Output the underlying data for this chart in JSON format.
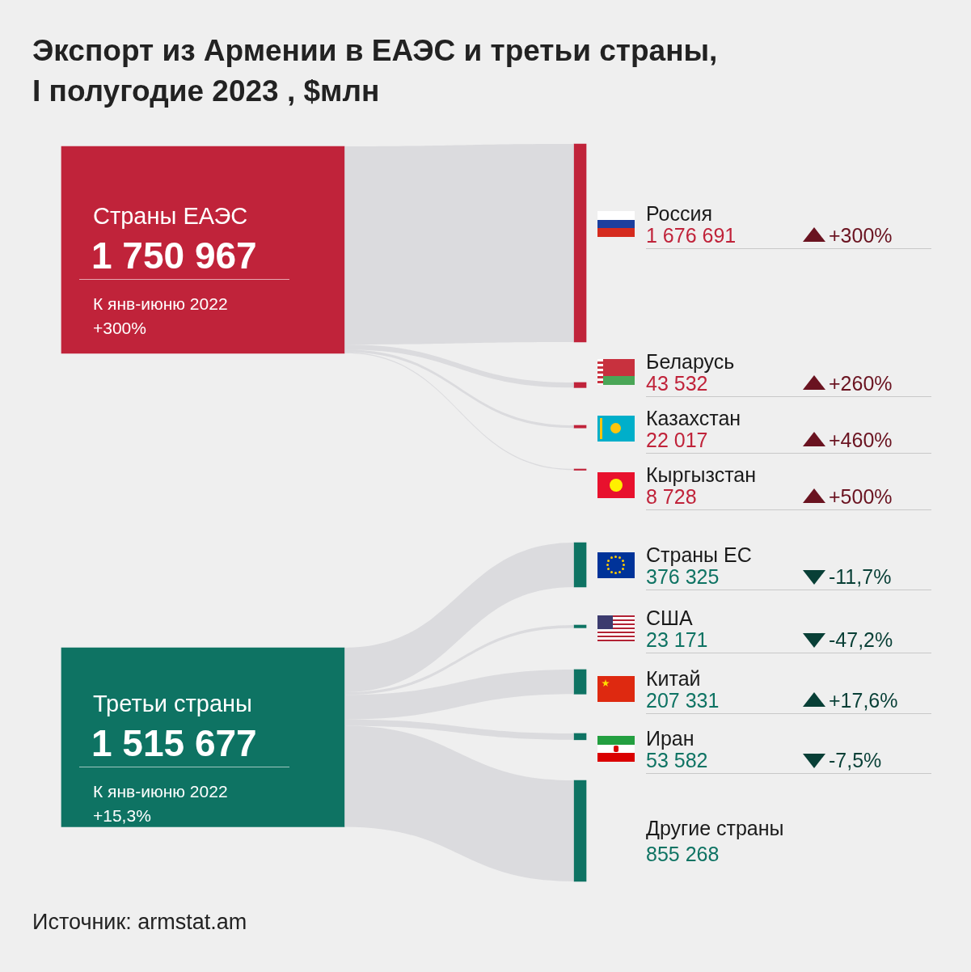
{
  "chart_data": {
    "type": "other",
    "title": "Экспорт из Армении в ЕАЭС и третьи страны, I полугодие 2023 , $млн",
    "categories": [
      "Россия",
      "Беларусь",
      "Казахстан",
      "Кыргызстан",
      "Страны ЕС",
      "США",
      "Китай",
      "Иран",
      "Другие страны"
    ],
    "series": [
      {
        "name": "Страны ЕАЭС",
        "values": [
          1676691,
          43532,
          22017,
          8728,
          null,
          null,
          null,
          null,
          null
        ],
        "value_labels": [
          "1 676 691",
          "43 532",
          "22 017",
          "8 728",
          null,
          null,
          null,
          null,
          null
        ]
      },
      {
        "name": "Третьи страны",
        "values": [
          null,
          null,
          null,
          null,
          376325,
          23171,
          207331,
          53582,
          855268
        ],
        "value_labels": [
          null,
          null,
          null,
          null,
          "376 325",
          "23 171",
          "207 331",
          "53 582",
          "855 268"
        ]
      }
    ],
    "totals": [
      "1 750 967",
      "1 515 677"
    ],
    "annotations": [
      "К янв-июню 2022\n+300%",
      "К янв-июню 2022\n+15,3%",
      {
        "text": "+300%",
        "x": "Россия"
      },
      {
        "text": "+260%",
        "x": "Беларусь"
      },
      {
        "text": "+460%",
        "x": "Казахстан"
      },
      {
        "text": "+500%",
        "x": "Кыргызстан"
      },
      {
        "text": "-11,7%",
        "x": "Страны ЕС"
      },
      {
        "text": "-47,2%",
        "x": "США"
      },
      {
        "text": "+17,6%",
        "x": "Китай"
      },
      {
        "text": "-7,5%",
        "x": "Иран"
      },
      "Источник: armstat.am"
    ]
  }
}
